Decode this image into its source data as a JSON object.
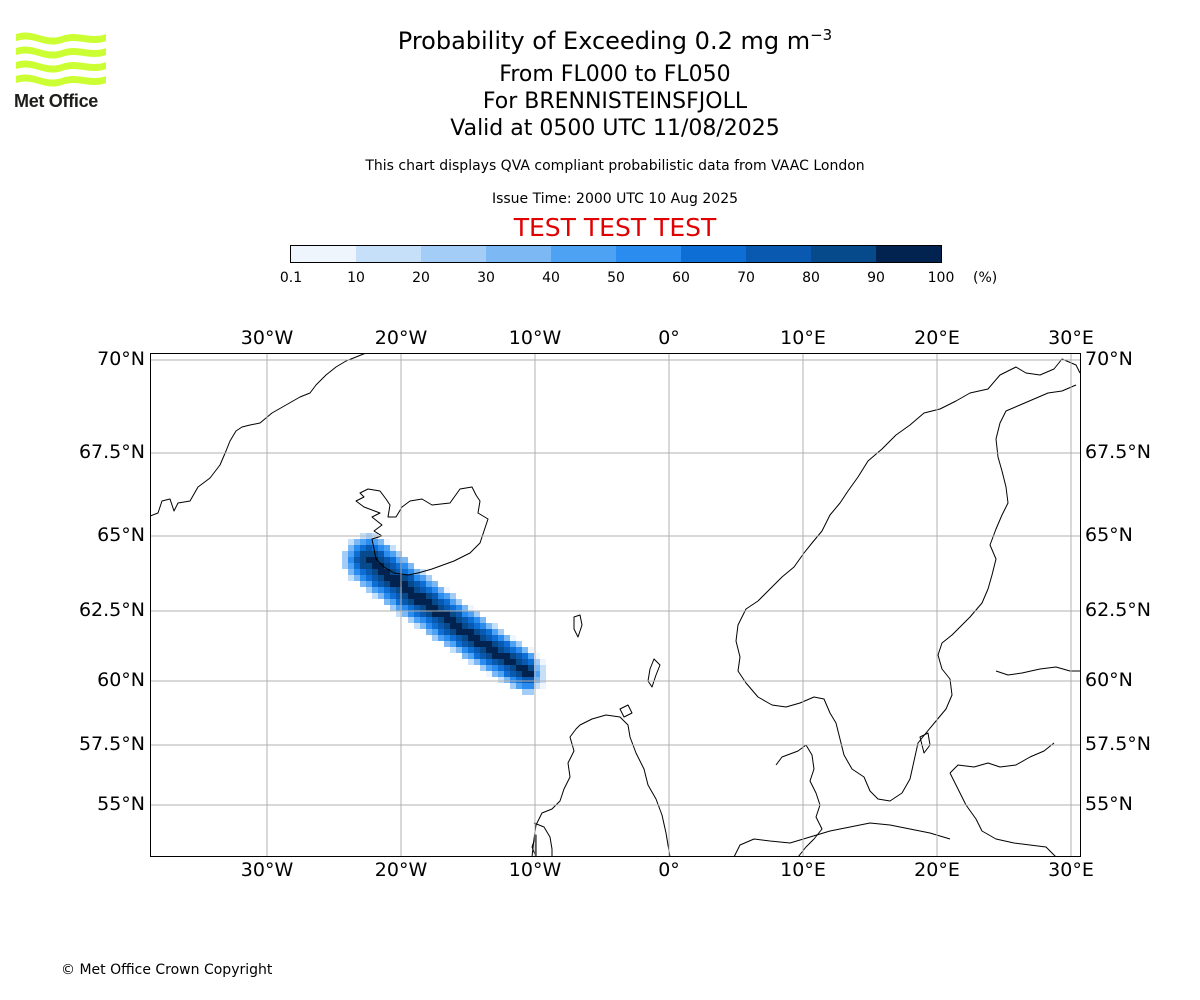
{
  "header": {
    "title_prefix": "Probability of Exceeding 0.2 mg m",
    "title_exponent": "−3",
    "flight_levels": "From FL000 to FL050",
    "volcano": "For BRENNISTEINSFJOLL",
    "valid_time": "Valid at 0500 UTC 11/08/2025",
    "description": "This chart displays QVA compliant probabilistic data from VAAC London",
    "issue_time": "Issue Time: 2000 UTC 10 Aug 2025",
    "test_banner": "TEST TEST TEST"
  },
  "logo": {
    "text": "Met Office",
    "color": "#ccff33"
  },
  "colorbar": {
    "unit": "(%)",
    "tick_labels": [
      "0.1",
      "10",
      "20",
      "30",
      "40",
      "50",
      "60",
      "70",
      "80",
      "90",
      "100"
    ],
    "colors": [
      "#eef5fd",
      "#c6e0fa",
      "#a3cdf7",
      "#7cb8f4",
      "#4ea2f3",
      "#2a8cef",
      "#0d6fd6",
      "#0a59b0",
      "#064a8c",
      "#02234f"
    ]
  },
  "map": {
    "lon_labels": [
      "30°W",
      "20°W",
      "10°W",
      "0°",
      "10°E",
      "20°E",
      "30°E"
    ],
    "lat_labels": [
      "70°N",
      "67.5°N",
      "65°N",
      "62.5°N",
      "60°N",
      "57.5°N",
      "55°N"
    ],
    "plume_center_line": [
      [
        -22.4,
        64.2
      ],
      [
        -19.5,
        63.2
      ],
      [
        -16.5,
        62.2
      ],
      [
        -13.5,
        61.2
      ],
      [
        -10.5,
        60.3
      ]
    ]
  },
  "footer": {
    "copyright": "© Met Office Crown Copyright"
  }
}
